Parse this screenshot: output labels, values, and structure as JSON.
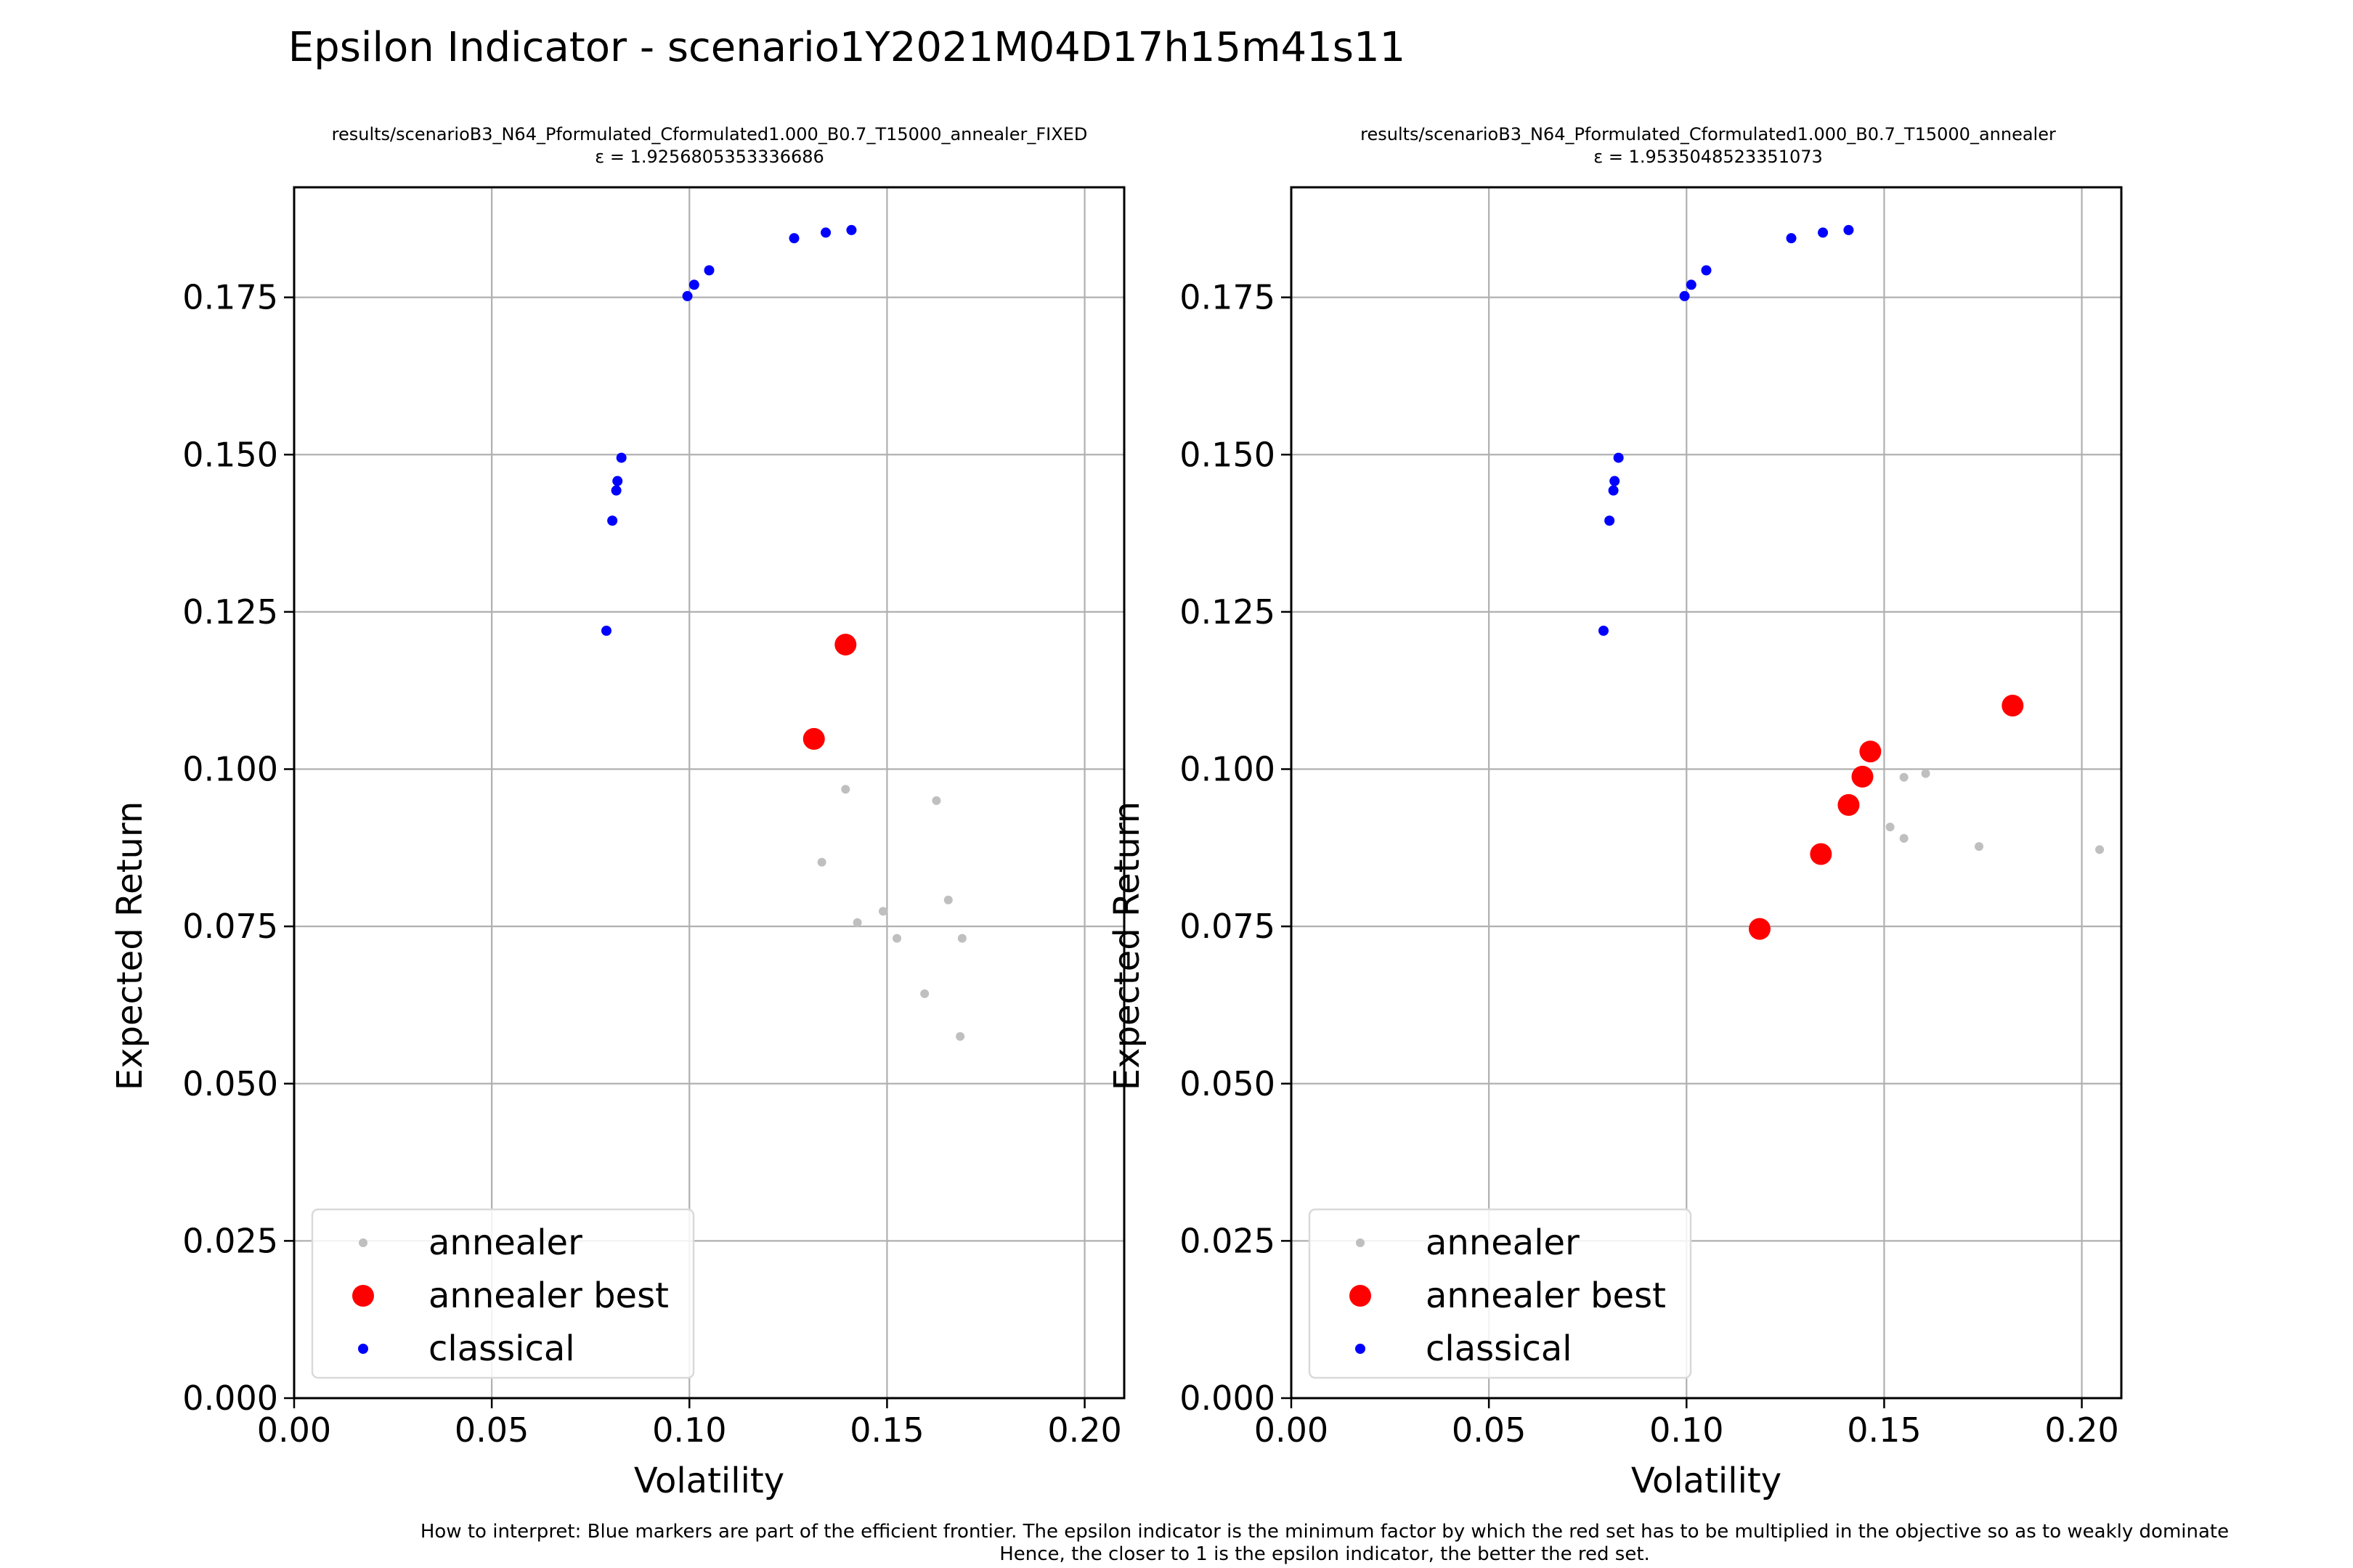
{
  "figure": {
    "title": "Epsilon Indicator - scenario1Y2021M04D17h15m41s11",
    "footnote_line1": "How to interpret: Blue markers are part of the efficient frontier. The epsilon indicator is the minimum factor by which the red set has to be multiplied in the objective so as to weakly dominate",
    "footnote_line2": "Hence, the closer to 1 is the epsilon indicator, the better the red set."
  },
  "colors": {
    "annealer": "#bfbfbf",
    "annealer_best": "#ff0000",
    "classical": "#0000ff",
    "grid": "#b0b0b0"
  },
  "chart_data": [
    {
      "type": "scatter",
      "title": "results/scenarioB3_N64_Pformulated_Cformulated1.000_B0.7_T15000_annealer_FIXED",
      "subtitle": "ε = 1.9256805353336686",
      "xlabel": "Volatility",
      "ylabel": "Expected Return",
      "xlim": [
        0.0,
        0.21
      ],
      "ylim": [
        0.0,
        0.1925
      ],
      "xticks": [
        "0.00",
        "0.05",
        "0.10",
        "0.15",
        "0.20"
      ],
      "yticks": [
        "0.000",
        "0.025",
        "0.050",
        "0.075",
        "0.100",
        "0.125",
        "0.150",
        "0.175"
      ],
      "grid": true,
      "legend": "lower-left",
      "series": [
        {
          "name": "annealer",
          "points": [
            [
              0.1395,
              0.0968
            ],
            [
              0.1625,
              0.095
            ],
            [
              0.1335,
              0.0852
            ],
            [
              0.1655,
              0.0792
            ],
            [
              0.149,
              0.0774
            ],
            [
              0.1425,
              0.0756
            ],
            [
              0.1525,
              0.0731
            ],
            [
              0.169,
              0.0731
            ],
            [
              0.1595,
              0.0643
            ],
            [
              0.1685,
              0.0575
            ]
          ]
        },
        {
          "name": "annealer best",
          "points": [
            [
              0.1395,
              0.1198
            ],
            [
              0.1315,
              0.1048
            ]
          ]
        },
        {
          "name": "classical",
          "points": [
            [
              0.079,
              0.122
            ],
            [
              0.0805,
              0.1395
            ],
            [
              0.0815,
              0.1443
            ],
            [
              0.0818,
              0.1458
            ],
            [
              0.0828,
              0.1495
            ],
            [
              0.0995,
              0.1752
            ],
            [
              0.1012,
              0.177
            ],
            [
              0.105,
              0.1793
            ],
            [
              0.1265,
              0.1844
            ],
            [
              0.1345,
              0.1853
            ],
            [
              0.141,
              0.1857
            ]
          ]
        }
      ]
    },
    {
      "type": "scatter",
      "title": "results/scenarioB3_N64_Pformulated_Cformulated1.000_B0.7_T15000_annealer",
      "subtitle": "ε = 1.9535048523351073",
      "xlabel": "Volatility",
      "ylabel": "Expected Return",
      "xlim": [
        0.0,
        0.21
      ],
      "ylim": [
        0.0,
        0.1925
      ],
      "xticks": [
        "0.00",
        "0.05",
        "0.10",
        "0.15",
        "0.20"
      ],
      "yticks": [
        "0.000",
        "0.025",
        "0.050",
        "0.075",
        "0.100",
        "0.125",
        "0.150",
        "0.175"
      ],
      "grid": true,
      "legend": "lower-left",
      "series": [
        {
          "name": "annealer",
          "points": [
            [
              0.155,
              0.0987
            ],
            [
              0.1605,
              0.0993
            ],
            [
              0.1515,
              0.0908
            ],
            [
              0.155,
              0.089
            ],
            [
              0.174,
              0.0877
            ],
            [
              0.2045,
              0.0872
            ]
          ]
        },
        {
          "name": "annealer best",
          "points": [
            [
              0.1825,
              0.1101
            ],
            [
              0.1465,
              0.1028
            ],
            [
              0.1445,
              0.0988
            ],
            [
              0.141,
              0.0943
            ],
            [
              0.134,
              0.0865
            ],
            [
              0.1185,
              0.0746
            ]
          ]
        },
        {
          "name": "classical",
          "points": [
            [
              0.079,
              0.122
            ],
            [
              0.0805,
              0.1395
            ],
            [
              0.0815,
              0.1443
            ],
            [
              0.0818,
              0.1458
            ],
            [
              0.0828,
              0.1495
            ],
            [
              0.0995,
              0.1752
            ],
            [
              0.1012,
              0.177
            ],
            [
              0.105,
              0.1793
            ],
            [
              0.1265,
              0.1844
            ],
            [
              0.1345,
              0.1853
            ],
            [
              0.141,
              0.1857
            ]
          ]
        }
      ]
    }
  ]
}
